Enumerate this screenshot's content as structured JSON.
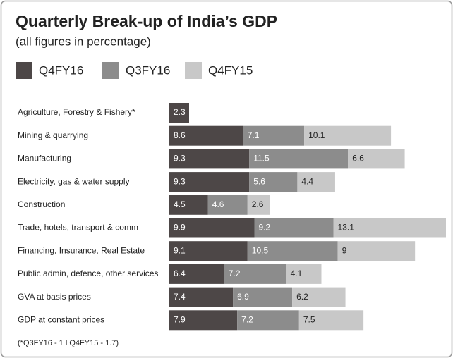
{
  "chart_data": {
    "type": "stacked_barh",
    "title": "Quarterly Break-up of India’s GDP",
    "subtitle": "(all figures in percentage)",
    "categories": [
      "Agriculture, Forestry & Fishery*",
      "Mining & quarrying",
      "Manufacturing",
      "Electricity, gas & water supply",
      "Construction",
      "Trade, hotels, transport & comm",
      "Financing, Insurance, Real Estate",
      "Public admin, defence, other services",
      "GVA at basis prices",
      "GDP at constant prices"
    ],
    "series": [
      {
        "name": "Q4FY16",
        "color": "#4d4747",
        "values": [
          2.3,
          8.6,
          9.3,
          9.3,
          4.5,
          9.9,
          9.1,
          6.4,
          7.4,
          7.9
        ]
      },
      {
        "name": "Q3FY16",
        "color": "#8c8c8c",
        "values": [
          null,
          7.1,
          11.5,
          5.6,
          4.6,
          9.2,
          10.5,
          7.2,
          6.9,
          7.2
        ]
      },
      {
        "name": "Q4FY15",
        "color": "#c8c8c8",
        "values": [
          null,
          10.1,
          6.6,
          4.4,
          2.6,
          13.1,
          9,
          4.1,
          6.2,
          7.5
        ]
      }
    ],
    "annotations": [
      "(*Q3FY16 - 1 l Q4FY15 - 1.7)"
    ]
  }
}
